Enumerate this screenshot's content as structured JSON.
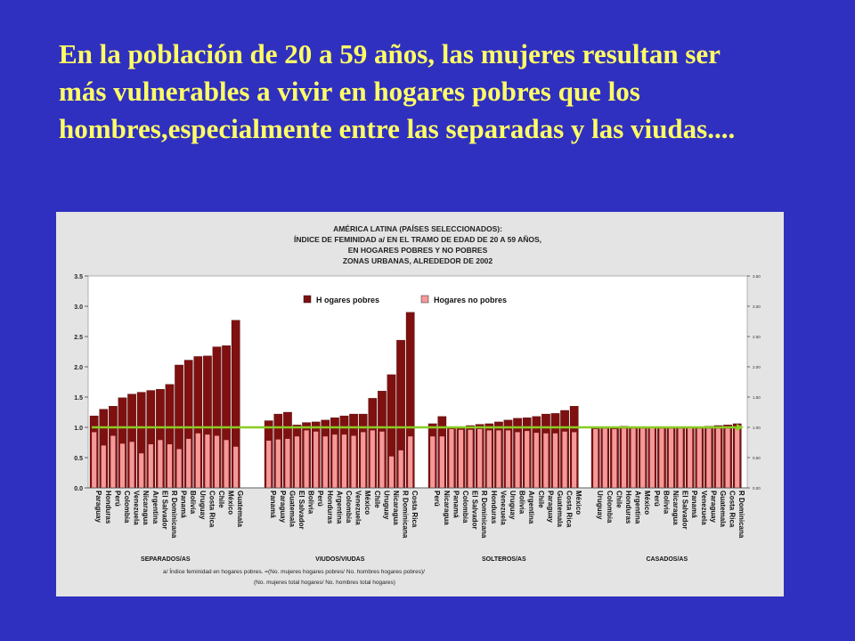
{
  "headline": "En la población  de 20 a 59 años, las mujeres resultan ser más vulnerables a vivir en  hogares pobres que los hombres,especialmente entre las separadas y las viudas....",
  "colors": {
    "background": "#3030c0",
    "headline": "#ffff66",
    "panel": "#e4e4e4",
    "plot_area": "#ffffff",
    "poor_series": "#7f1010",
    "nonpoor_series": "#f49a9a",
    "reference_line": "#88cc22"
  },
  "chart_data": {
    "type": "bar",
    "title_lines": [
      "AMÉRICA LATINA (PAÍSES SELECCIONADOS):",
      "ÍNDICE DE FEMINIDAD a/  EN EL TRAMO DE EDAD DE 20 A 59 AÑOS,",
      "EN HOGARES POBRES Y NO POBRES",
      "ZONAS URBANAS,  ALREDEDOR DE 2002"
    ],
    "legend": [
      "H ogares pobres",
      "Hogares no pobres"
    ],
    "legend_position": "top-right",
    "ylim": [
      0,
      3.5
    ],
    "yticks_left": [
      "0.0",
      "0.5",
      "1.0",
      "1.5",
      "2.0",
      "2.5",
      "3.0",
      "3.5"
    ],
    "yticks_right": [
      "0.00",
      "0.50",
      "1.00",
      "1.50",
      "2.00",
      "2.50",
      "3.00",
      "3.50"
    ],
    "reference_value": 1.0,
    "footnote_line1": "a/  Índice feminidad en hogares pobres. =(No. mujeres hogares pobres/ No. hombres hogares pobres)/",
    "footnote_line2": "(No. mujeres total hogares/ No. hombres total hogares)",
    "groups": [
      {
        "name": "SEPARADOS/AS",
        "categories": [
          "Paraguay",
          "Honduras",
          "Perú",
          "Colombia",
          "Venezuela",
          "Nicaragua",
          "Argentina",
          "El Salvador",
          "R Dominicana",
          "Panamá",
          "Bolivia",
          "Uruguay",
          "Costa Rica",
          "Chile",
          "México",
          "Guatemala"
        ],
        "poor": [
          1.19,
          1.3,
          1.35,
          1.49,
          1.55,
          1.58,
          1.61,
          1.63,
          1.71,
          2.03,
          2.11,
          2.17,
          2.18,
          2.33,
          2.35,
          2.77
        ],
        "nonpoor": [
          0.92,
          0.7,
          0.86,
          0.73,
          0.76,
          0.57,
          0.72,
          0.79,
          0.72,
          0.64,
          0.81,
          0.9,
          0.88,
          0.86,
          0.79,
          0.68
        ]
      },
      {
        "name": "VIUDOS/VIUDAS",
        "categories": [
          "Panamá",
          "Paraguay",
          "Guatemala",
          "El Salvador",
          "Bolivia",
          "Perú",
          "Honduras",
          "Argentina",
          "Colombia",
          "Venezuela",
          "México",
          "Chile",
          "Uruguay",
          "Nicaragua",
          "R Dominicana",
          "Costa Rica"
        ],
        "poor": [
          1.11,
          1.22,
          1.25,
          1.04,
          1.08,
          1.09,
          1.12,
          1.16,
          1.19,
          1.22,
          1.22,
          1.48,
          1.6,
          1.87,
          2.44,
          2.9
        ],
        "nonpoor": [
          0.78,
          0.8,
          0.81,
          0.85,
          0.95,
          0.93,
          0.85,
          0.88,
          0.88,
          0.86,
          0.92,
          0.95,
          0.93,
          0.52,
          0.62,
          0.85
        ]
      },
      {
        "name": "SOLTEROS/AS",
        "categories": [
          "Perú",
          "Nicaragua",
          "Panamá",
          "Colombia",
          "El Salvador",
          "R Dominicana",
          "Honduras",
          "Venezuela",
          "Uruguay",
          "Bolivia",
          "Argentina",
          "Chile",
          "Paraguay",
          "Guatemala",
          "Costa Rica",
          "México"
        ],
        "poor": [
          1.06,
          1.18,
          1.0,
          1.01,
          1.03,
          1.05,
          1.06,
          1.09,
          1.12,
          1.15,
          1.16,
          1.18,
          1.22,
          1.23,
          1.28,
          1.35
        ],
        "nonpoor": [
          0.85,
          0.85,
          0.97,
          0.96,
          0.96,
          0.97,
          0.95,
          0.95,
          0.95,
          0.92,
          0.94,
          0.91,
          0.9,
          0.9,
          0.93,
          0.92
        ]
      },
      {
        "name": "CASADOS/AS",
        "categories": [
          "Uruguay",
          "Colombia",
          "Chile",
          "Honduras",
          "Argentina",
          "México",
          "Perú",
          "Bolivia",
          "Nicaragua",
          "El Salvador",
          "Panamá",
          "Venezuela",
          "Paraguay",
          "Guatemala",
          "Costa Rica",
          "R Dominicana"
        ],
        "poor": [
          0.98,
          1.01,
          1.01,
          1.02,
          1.0,
          0.99,
          1.0,
          1.0,
          0.99,
          1.0,
          1.01,
          1.01,
          1.02,
          1.03,
          1.04,
          1.06
        ],
        "nonpoor": [
          0.97,
          0.98,
          0.97,
          0.98,
          0.98,
          0.98,
          0.99,
          0.98,
          0.98,
          0.98,
          0.99,
          0.98,
          0.98,
          0.98,
          0.98,
          0.98
        ]
      }
    ]
  }
}
